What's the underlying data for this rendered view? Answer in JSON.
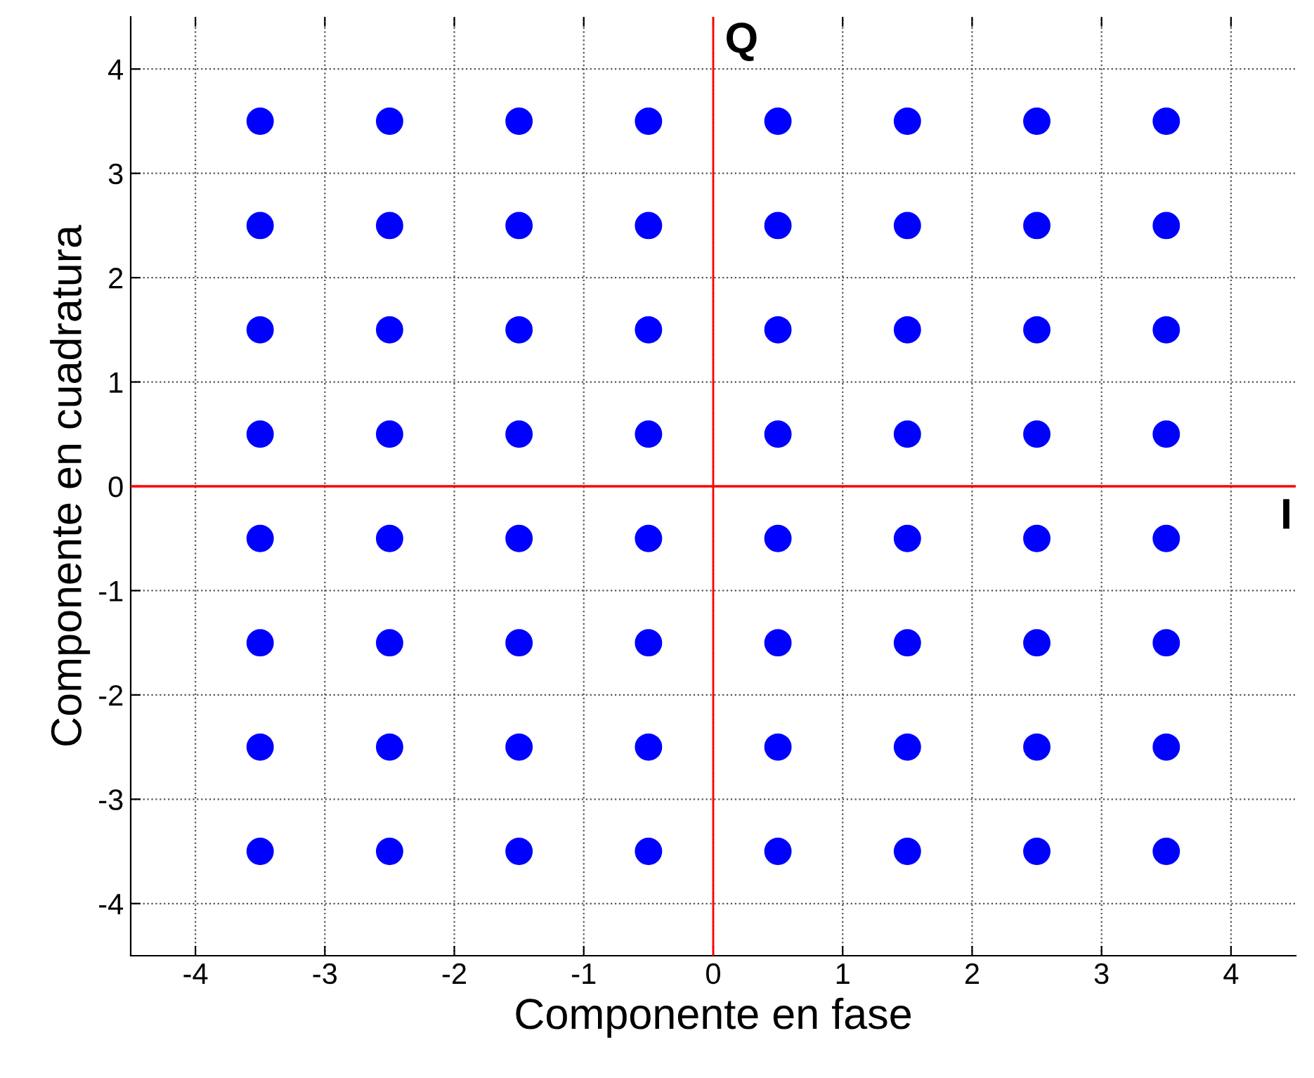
{
  "chart_data": {
    "type": "scatter",
    "xlabel": "Componente en fase",
    "ylabel": "Componente en cuadratura",
    "x": [
      -3.5,
      -2.5,
      -1.5,
      -0.5,
      0.5,
      1.5,
      2.5,
      3.5,
      -3.5,
      -2.5,
      -1.5,
      -0.5,
      0.5,
      1.5,
      2.5,
      3.5,
      -3.5,
      -2.5,
      -1.5,
      -0.5,
      0.5,
      1.5,
      2.5,
      3.5,
      -3.5,
      -2.5,
      -1.5,
      -0.5,
      0.5,
      1.5,
      2.5,
      3.5,
      -3.5,
      -2.5,
      -1.5,
      -0.5,
      0.5,
      1.5,
      2.5,
      3.5,
      -3.5,
      -2.5,
      -1.5,
      -0.5,
      0.5,
      1.5,
      2.5,
      3.5,
      -3.5,
      -2.5,
      -1.5,
      -0.5,
      0.5,
      1.5,
      2.5,
      3.5,
      -3.5,
      -2.5,
      -1.5,
      -0.5,
      0.5,
      1.5,
      2.5,
      3.5
    ],
    "series": [
      {
        "color": "#0000ff",
        "values": [
          3.5,
          3.5,
          3.5,
          3.5,
          3.5,
          3.5,
          3.5,
          3.5,
          2.5,
          2.5,
          2.5,
          2.5,
          2.5,
          2.5,
          2.5,
          2.5,
          1.5,
          1.5,
          1.5,
          1.5,
          1.5,
          1.5,
          1.5,
          1.5,
          0.5,
          0.5,
          0.5,
          0.5,
          0.5,
          0.5,
          0.5,
          0.5,
          -0.5,
          -0.5,
          -0.5,
          -0.5,
          -0.5,
          -0.5,
          -0.5,
          -0.5,
          -1.5,
          -1.5,
          -1.5,
          -1.5,
          -1.5,
          -1.5,
          -1.5,
          -1.5,
          -2.5,
          -2.5,
          -2.5,
          -2.5,
          -2.5,
          -2.5,
          -2.5,
          -2.5,
          -3.5,
          -3.5,
          -3.5,
          -3.5,
          -3.5,
          -3.5,
          -3.5,
          -3.5
        ]
      }
    ],
    "marker": "circle",
    "xlim": [
      -4.5,
      4.5
    ],
    "ylim": [
      -4.5,
      4.5
    ],
    "xticks": [
      -4,
      -3,
      -2,
      -1,
      0,
      1,
      2,
      3,
      4
    ],
    "yticks": [
      -4,
      -3,
      -2,
      -1,
      0,
      1,
      2,
      3,
      4
    ],
    "grid": true,
    "ref_lines": [
      {
        "axis": "x",
        "value": 0,
        "label": "Q",
        "color": "#ff0000"
      },
      {
        "axis": "y",
        "value": 0,
        "label": "I",
        "color": "#ff0000"
      }
    ]
  }
}
